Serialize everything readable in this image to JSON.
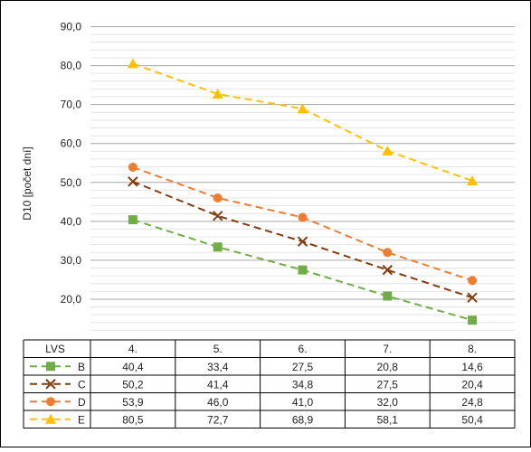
{
  "chart_data": {
    "type": "line",
    "ylabel": "D10 [počet dní]",
    "ylim": [
      10,
      90
    ],
    "y_major_ticks": [
      20,
      30,
      40,
      50,
      60,
      70,
      80,
      90
    ],
    "y_tick_labels": [
      "20,0",
      "30,0",
      "40,0",
      "50,0",
      "60,0",
      "70,0",
      "80,0",
      "90,0"
    ],
    "y_minor_step": 2,
    "grid": true,
    "legend": "data-table",
    "table_header_label": "LVS",
    "categories": [
      "4.",
      "5.",
      "6.",
      "7.",
      "8."
    ],
    "series": [
      {
        "name": "B",
        "marker": "square",
        "color": "#70ad47",
        "values": [
          40.4,
          33.4,
          27.5,
          20.8,
          14.6
        ],
        "value_labels": [
          "40,4",
          "33,4",
          "27,5",
          "20,8",
          "14,6"
        ]
      },
      {
        "name": "C",
        "marker": "x",
        "color": "#843c0c",
        "values": [
          50.2,
          41.4,
          34.8,
          27.5,
          20.4
        ],
        "value_labels": [
          "50,2",
          "41,4",
          "34,8",
          "27,5",
          "20,4"
        ]
      },
      {
        "name": "D",
        "marker": "circle",
        "color": "#ed7d31",
        "values": [
          53.9,
          46.0,
          41.0,
          32.0,
          24.8
        ],
        "value_labels": [
          "53,9",
          "46,0",
          "41,0",
          "32,0",
          "24,8"
        ]
      },
      {
        "name": "E",
        "marker": "triangle",
        "color": "#ffc000",
        "values": [
          80.5,
          72.7,
          68.9,
          58.1,
          50.4
        ],
        "value_labels": [
          "80,5",
          "72,7",
          "68,9",
          "58,1",
          "50,4"
        ]
      }
    ]
  }
}
